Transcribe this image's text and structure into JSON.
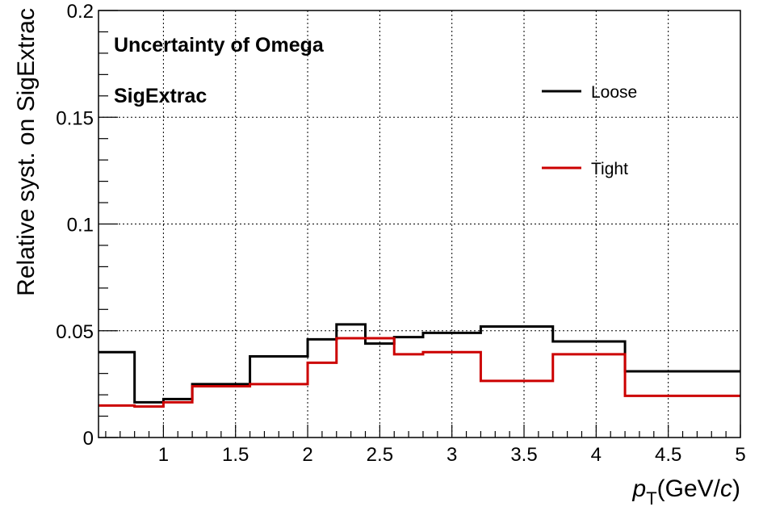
{
  "chart_data": {
    "type": "line",
    "step": true,
    "title": "",
    "annotations": [
      "Uncertainty of Omega",
      "SigExtrac"
    ],
    "xlabel": {
      "var": "p",
      "sub": "T",
      "unit_pre": "(GeV/",
      "unit_var": "c",
      "unit_post": ")"
    },
    "ylabel": "Relative syst. on SigExtrac",
    "xlim": [
      0.55,
      5.0
    ],
    "ylim": [
      0,
      0.2
    ],
    "x_ticks": [
      1,
      1.5,
      2,
      2.5,
      3,
      3.5,
      4,
      4.5,
      5
    ],
    "x_tick_labels": [
      "1",
      "1.5",
      "2",
      "2.5",
      "3",
      "3.5",
      "4",
      "4.5",
      "5"
    ],
    "y_ticks": [
      0,
      0.05,
      0.1,
      0.15,
      0.2
    ],
    "y_tick_labels": [
      "0",
      "0.05",
      "0.1",
      "0.15",
      "0.2"
    ],
    "grid": true,
    "legend_position": "top-right",
    "bin_edges": [
      0.55,
      0.8,
      1.0,
      1.2,
      1.6,
      2.0,
      2.2,
      2.4,
      2.6,
      2.8,
      3.2,
      3.7,
      4.2,
      5.0
    ],
    "series": [
      {
        "name": "Loose",
        "color": "#000000",
        "values": [
          0.04,
          0.0165,
          0.018,
          0.025,
          0.038,
          0.046,
          0.053,
          0.044,
          0.047,
          0.049,
          0.052,
          0.045,
          0.031
        ]
      },
      {
        "name": "Tight",
        "color": "#cc0000",
        "values": [
          0.015,
          0.0145,
          0.0165,
          0.024,
          0.025,
          0.035,
          0.0465,
          0.0465,
          0.039,
          0.04,
          0.0265,
          0.039,
          0.0195
        ]
      }
    ]
  }
}
